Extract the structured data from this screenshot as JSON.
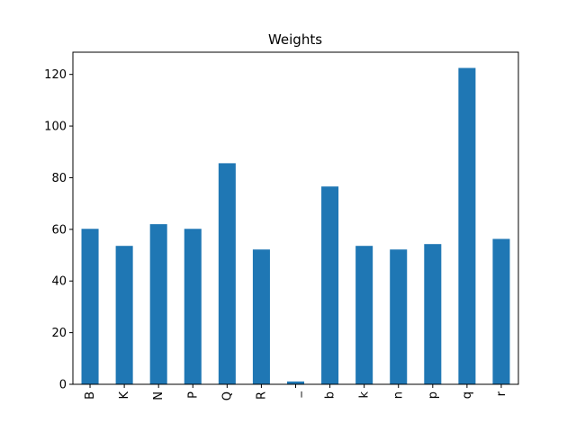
{
  "chart_data": {
    "type": "bar",
    "title": "Weights",
    "xlabel": "",
    "ylabel": "",
    "categories": [
      "B",
      "K",
      "N",
      "P",
      "Q",
      "R",
      "_",
      "b",
      "k",
      "n",
      "p",
      "q",
      "r"
    ],
    "values": [
      60.2,
      53.6,
      62.0,
      60.2,
      85.6,
      52.2,
      1.1,
      76.6,
      53.6,
      52.2,
      54.3,
      122.5,
      56.3
    ],
    "ylim": [
      0,
      128.6
    ],
    "yticks": [
      0,
      20,
      40,
      60,
      80,
      100,
      120
    ],
    "grid": false,
    "bar_color": "#1f77b4"
  }
}
